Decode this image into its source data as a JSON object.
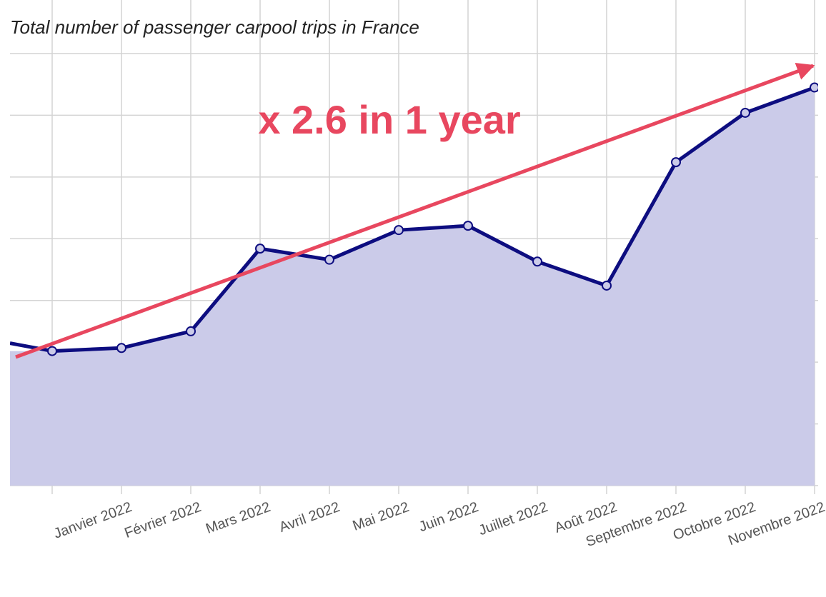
{
  "chart_data": {
    "type": "area",
    "title": "Total number of passenger carpool trips in France",
    "annotation": "x 2.6 in 1 year",
    "categories": [
      null,
      "Janvier 2022",
      "Février 2022",
      "Mars 2022",
      "Avril 2022",
      "Mai 2022",
      "Juin 2022",
      "Juillet 2022",
      "Août 2022",
      "Septembre 2022",
      "Octobre 2022",
      "Novembre 2022"
    ],
    "values": [
      2.18,
      2.23,
      2.5,
      3.84,
      3.66,
      4.14,
      4.21,
      3.63,
      3.24,
      5.24,
      6.04,
      6.45
    ],
    "color": "#0d0d80",
    "fill": "#cbcbe9",
    "ylim": [
      0,
      7
    ],
    "yticks": [
      0,
      1,
      2,
      3,
      4,
      5,
      6,
      7
    ],
    "grid": true
  }
}
